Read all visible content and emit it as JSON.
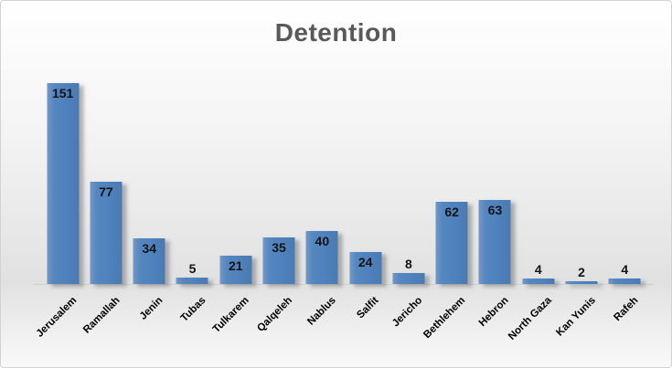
{
  "chart_data": {
    "type": "bar",
    "title": "Detention",
    "categories": [
      "Jerusalem",
      "Ramallah",
      "Jenin",
      "Tubas",
      "Tulkarem",
      "Qalqeleh",
      "Nablus",
      "Salfit",
      "Jericho",
      "Bethlehem",
      "Hebron",
      "North Gaza",
      "Kan Yunis",
      "Rafeh"
    ],
    "values": [
      151,
      77,
      34,
      5,
      21,
      35,
      40,
      24,
      8,
      62,
      63,
      4,
      2,
      4
    ],
    "xlabel": "",
    "ylabel": "",
    "ylim": [
      0,
      160
    ],
    "grid": false,
    "legend": false,
    "data_labels": "inside-end",
    "x_tick_rotation_deg": 45
  },
  "colors": {
    "bar_fill": "#4f81bd",
    "title_text": "#595959",
    "label_text": "#000000",
    "frame_border": "#d2d2d2"
  }
}
